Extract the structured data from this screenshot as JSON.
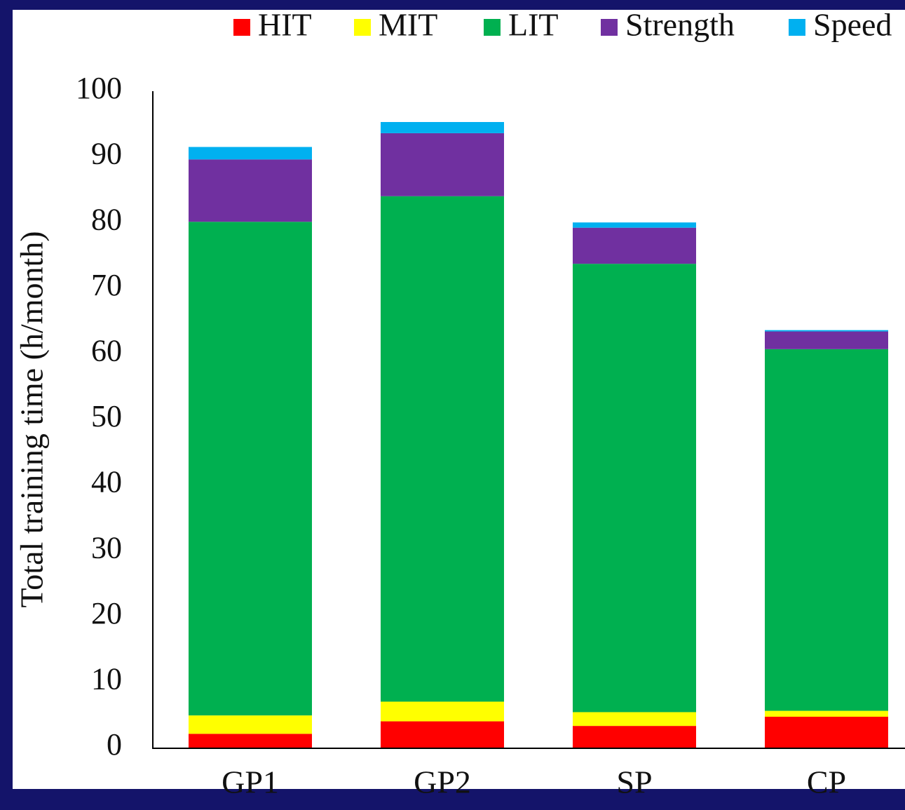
{
  "chart_data": {
    "type": "stacked-bar",
    "y_label": "Total training time (h/month)",
    "categories": [
      "GP1",
      "GP2",
      "SP",
      "CP"
    ],
    "series": [
      {
        "name": "HIT",
        "color": "#ff0000",
        "values": [
          2.1,
          4.0,
          3.3,
          4.7
        ]
      },
      {
        "name": "MIT",
        "color": "#ffff00",
        "values": [
          2.8,
          3.0,
          2.1,
          0.9
        ]
      },
      {
        "name": "LIT",
        "color": "#00b050",
        "values": [
          75.2,
          77.0,
          68.3,
          55.1
        ]
      },
      {
        "name": "Strength",
        "color": "#7030a0",
        "values": [
          9.5,
          9.6,
          5.5,
          2.7
        ]
      },
      {
        "name": "Speed",
        "color": "#00b0f0",
        "values": [
          1.9,
          1.7,
          0.8,
          0.2
        ]
      }
    ],
    "ylim": [
      0,
      100
    ],
    "yticks": [
      0,
      10,
      20,
      30,
      40,
      50,
      60,
      70,
      80,
      90,
      100
    ],
    "legend": "top"
  }
}
